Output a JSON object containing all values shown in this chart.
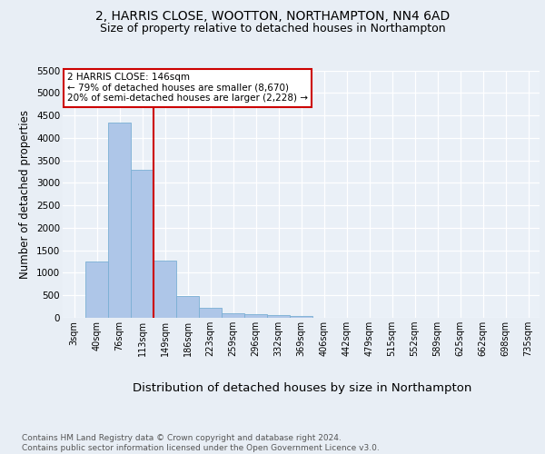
{
  "title1": "2, HARRIS CLOSE, WOOTTON, NORTHAMPTON, NN4 6AD",
  "title2": "Size of property relative to detached houses in Northampton",
  "xlabel": "Distribution of detached houses by size in Northampton",
  "ylabel": "Number of detached properties",
  "footnote": "Contains HM Land Registry data © Crown copyright and database right 2024.\nContains public sector information licensed under the Open Government Licence v3.0.",
  "bar_labels": [
    "3sqm",
    "40sqm",
    "76sqm",
    "113sqm",
    "149sqm",
    "186sqm",
    "223sqm",
    "259sqm",
    "296sqm",
    "332sqm",
    "369sqm",
    "406sqm",
    "442sqm",
    "479sqm",
    "515sqm",
    "552sqm",
    "589sqm",
    "625sqm",
    "662sqm",
    "698sqm",
    "735sqm"
  ],
  "bar_values": [
    0,
    1260,
    4340,
    3300,
    1280,
    490,
    215,
    100,
    75,
    55,
    50,
    0,
    0,
    0,
    0,
    0,
    0,
    0,
    0,
    0,
    0
  ],
  "bar_color": "#aec6e8",
  "bar_edge_color": "#7aafd4",
  "vline_color": "#cc0000",
  "vline_x": 3.5,
  "annotation_text": "2 HARRIS CLOSE: 146sqm\n← 79% of detached houses are smaller (8,670)\n20% of semi-detached houses are larger (2,228) →",
  "annotation_box_color": "#ffffff",
  "annotation_box_edge": "#cc0000",
  "ylim": [
    0,
    5500
  ],
  "yticks": [
    0,
    500,
    1000,
    1500,
    2000,
    2500,
    3000,
    3500,
    4000,
    4500,
    5000,
    5500
  ],
  "bg_color": "#e8eef5",
  "plot_bg_color": "#eaf0f7",
  "title_fontsize": 10,
  "subtitle_fontsize": 9,
  "xlabel_fontsize": 9.5,
  "ylabel_fontsize": 8.5,
  "tick_fontsize": 7,
  "annotation_fontsize": 7.5,
  "footnote_fontsize": 6.5
}
